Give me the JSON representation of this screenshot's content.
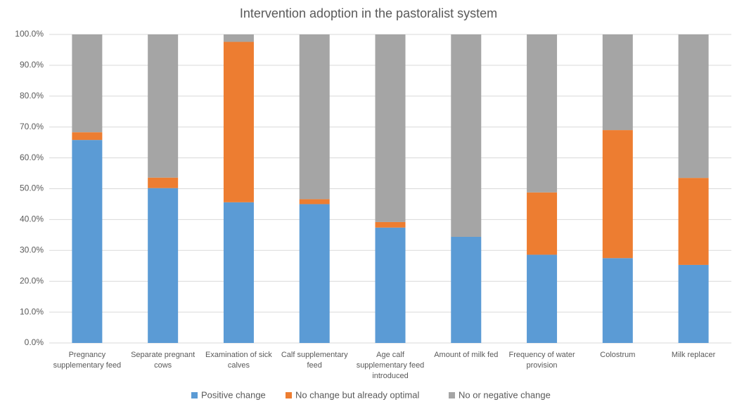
{
  "chart_data": {
    "type": "stacked_bar",
    "title": "Intervention adoption in the pastoralist system",
    "categories": [
      "Pregnancy supplementary feed",
      "Separate pregnant cows",
      "Examination of sick calves",
      "Calf supplementary feed",
      "Age calf supplementary feed introduced",
      "Amount of milk fed",
      "Frequency of water provision",
      "Colostrum",
      "Milk replacer"
    ],
    "series": [
      {
        "name": "Positive change",
        "color": "#5b9bd5",
        "values": [
          65.8,
          50.2,
          45.6,
          45.0,
          37.4,
          34.4,
          28.6,
          27.5,
          25.3
        ]
      },
      {
        "name": "No change but already optimal",
        "color": "#ed7d31",
        "values": [
          2.5,
          3.4,
          52.0,
          1.6,
          1.8,
          0,
          20.2,
          41.5,
          28.2
        ]
      },
      {
        "name": "No or negative change",
        "color": "#a5a5a5",
        "values": [
          31.7,
          46.4,
          2.4,
          53.4,
          60.8,
          65.6,
          51.2,
          31.0,
          46.5
        ]
      }
    ],
    "ylim": [
      0,
      100
    ],
    "yticks": [
      {
        "value": 0,
        "label": "0.0%"
      },
      {
        "value": 10,
        "label": "10.0%"
      },
      {
        "value": 20,
        "label": "20.0%"
      },
      {
        "value": 30,
        "label": "30.0%"
      },
      {
        "value": 40,
        "label": "40.0%"
      },
      {
        "value": 50,
        "label": "50.0%"
      },
      {
        "value": 60,
        "label": "60.0%"
      },
      {
        "value": 70,
        "label": "70.0%"
      },
      {
        "value": 80,
        "label": "80.0%"
      },
      {
        "value": 90,
        "label": "90.0%"
      },
      {
        "value": 100,
        "label": "100.0%"
      }
    ],
    "grid": true,
    "legend": "bottom"
  }
}
